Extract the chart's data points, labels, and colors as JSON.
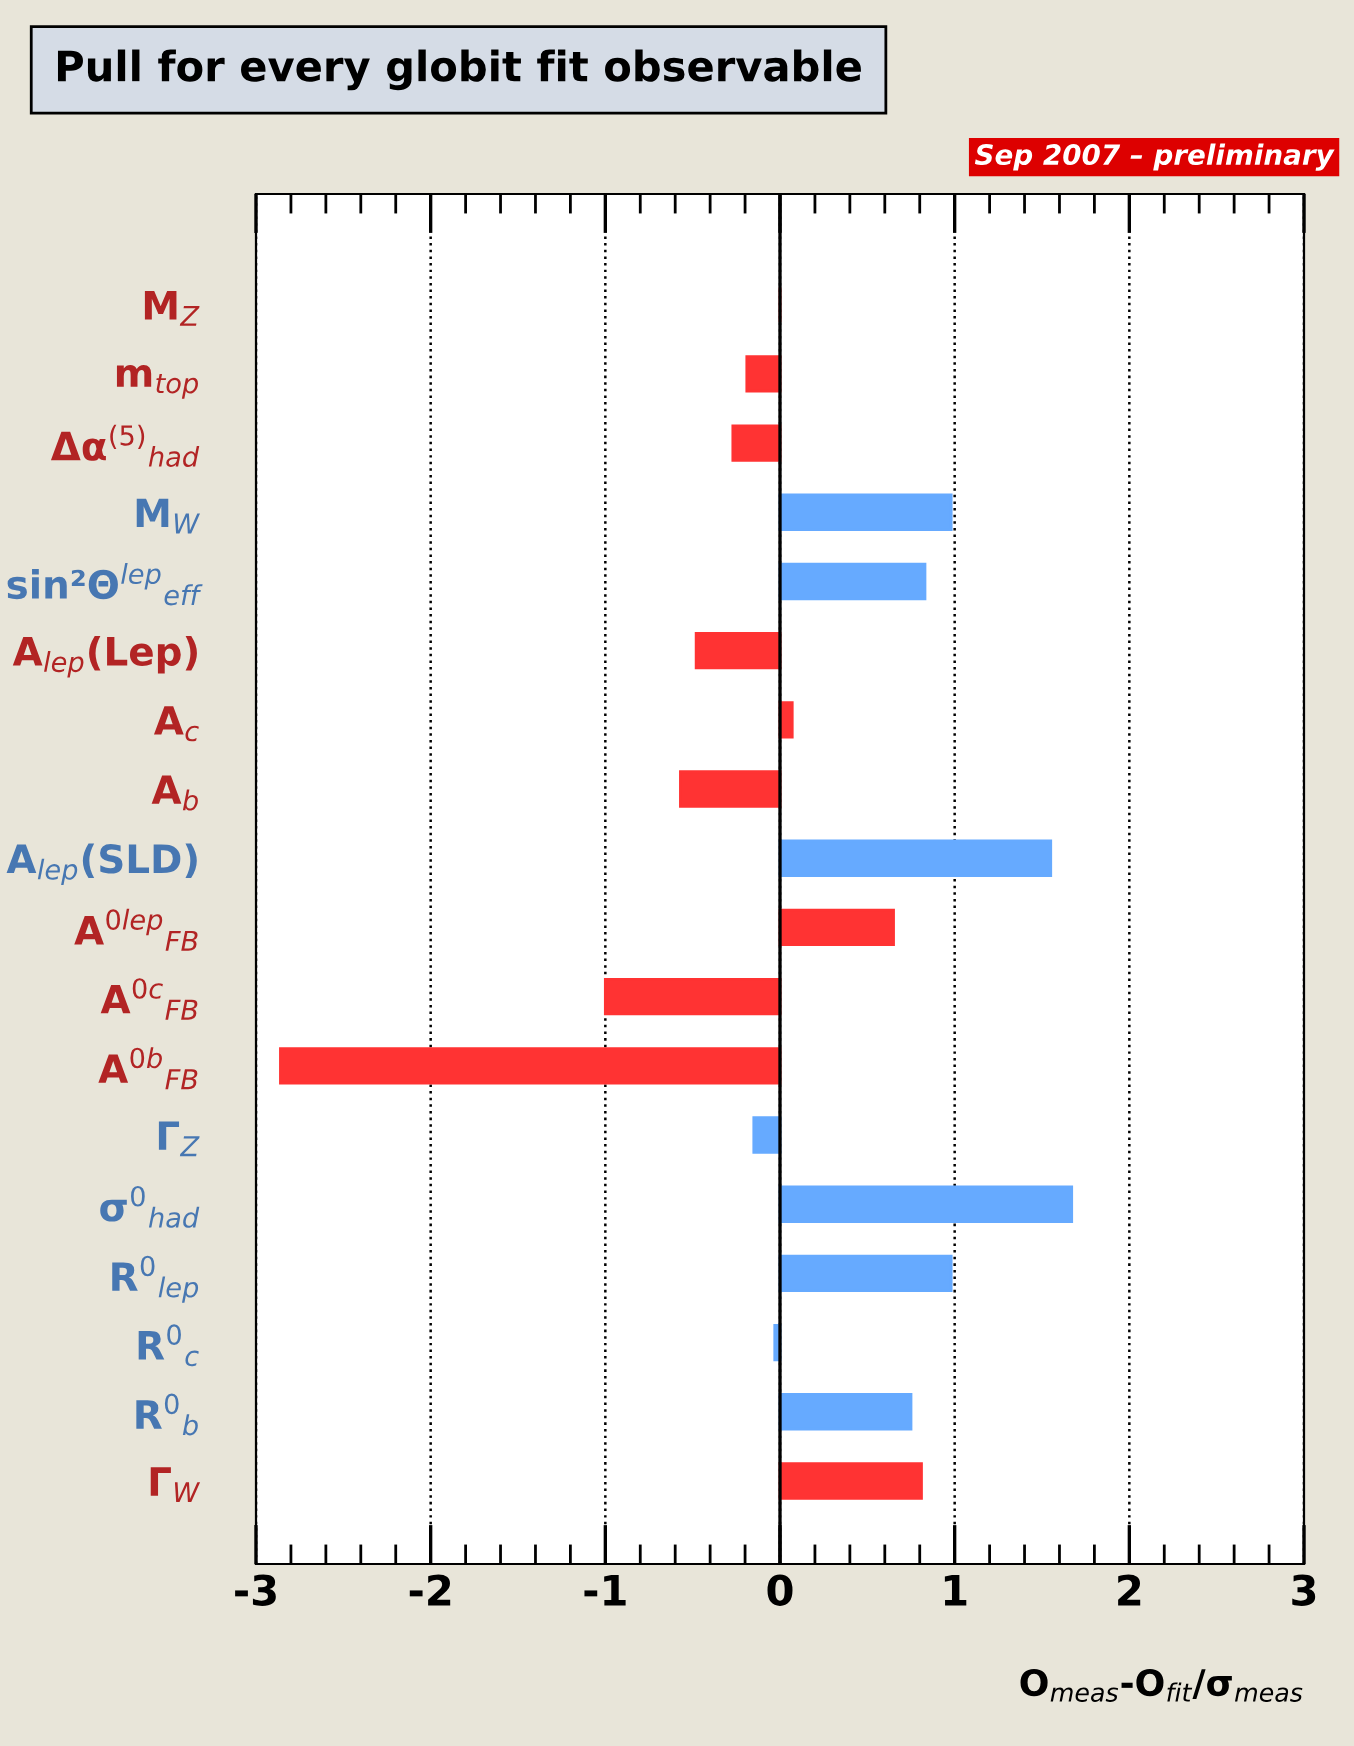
{
  "chart_data": {
    "type": "bar",
    "orientation": "horizontal",
    "title": "Pull for every globit fit observable",
    "categories": [
      "M$_{Z}$",
      "m$_{top}$",
      "Δα$^{(5)}$$_{had}$",
      "M$_{W}$",
      "sin²Θ$^{lep}$$_{eff}$",
      "A$_{lep}$(Lep)",
      "A$_{c}$",
      "A$_{b}$",
      "A$_{lep}$(SLD)",
      "A$^{0lep}$$_{FB}$",
      "A$^{0c}$$_{FB}$",
      "A$^{0b}$$_{FB}$",
      "Γ$_{Z}$",
      "σ$^{0}$$_{had}$",
      "R$^{0}$$_{lep}$",
      "R$^{0}$$_{c}$",
      "R$^{0}$$_{b}$",
      "Γ$_{W}$"
    ],
    "values": [
      0.0,
      -0.19,
      -0.27,
      0.98,
      0.83,
      -0.48,
      0.07,
      -0.57,
      1.55,
      0.65,
      -1.0,
      -2.86,
      -0.15,
      1.67,
      0.98,
      -0.03,
      0.75,
      0.81
    ],
    "colors": [
      "#ff3333",
      "#ff3333",
      "#ff3333",
      "#66aaff",
      "#66aaff",
      "#ff3333",
      "#ff3333",
      "#ff3333",
      "#66aaff",
      "#ff3333",
      "#ff3333",
      "#ff3333",
      "#66aaff",
      "#66aaff",
      "#66aaff",
      "#66aaff",
      "#66aaff",
      "#ff3333"
    ],
    "xlabel": "O$_{meas}$-O$_{fit}$/σ$_{meas}$",
    "xlim": [
      -3,
      3
    ],
    "xticks": [
      -3,
      -2,
      -1,
      0,
      1,
      2,
      3
    ],
    "grid": "x",
    "ref_lines": [
      {
        "axis": "x",
        "value": 0,
        "color": "#000000"
      }
    ],
    "annotations": [
      "Sep 2007 – preliminary"
    ]
  }
}
